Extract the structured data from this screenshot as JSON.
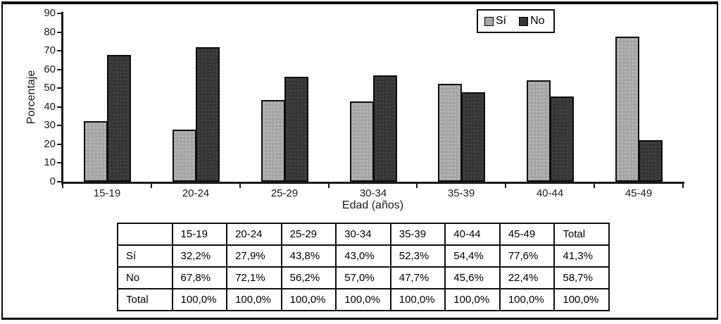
{
  "chart_data": {
    "type": "bar",
    "title": "",
    "categories": [
      "15-19",
      "20-24",
      "25-29",
      "30-34",
      "35-39",
      "40-44",
      "45-49"
    ],
    "series": [
      {
        "name": "Sí",
        "color": "#a6a6a6",
        "values": [
          32.2,
          27.9,
          43.8,
          43.0,
          52.3,
          54.4,
          77.6
        ]
      },
      {
        "name": "No",
        "color": "#363636",
        "values": [
          67.8,
          72.1,
          56.2,
          57.0,
          47.7,
          45.6,
          22.4
        ]
      }
    ],
    "xlabel": "Edad (años)",
    "ylabel": "Porcentaje",
    "ylim": [
      0,
      90
    ],
    "yticks": [
      0,
      10,
      20,
      30,
      40,
      50,
      60,
      70,
      80,
      90
    ],
    "grid": false,
    "legend_position": "top-right-inside",
    "axis_color": "#1a1a1a"
  },
  "table": {
    "columns": [
      "",
      "15-19",
      "20-24",
      "25-29",
      "30-34",
      "35-39",
      "40-44",
      "45-49",
      "Total"
    ],
    "rows": [
      {
        "label": "Sí",
        "values": [
          "32,2%",
          "27,9%",
          "43,8%",
          "43,0%",
          "52,3%",
          "54,4%",
          "77,6%",
          "41,3%"
        ]
      },
      {
        "label": "No",
        "values": [
          "67,8%",
          "72,1%",
          "56,2%",
          "57,0%",
          "47,7%",
          "45,6%",
          "22,4%",
          "58,7%"
        ]
      },
      {
        "label": "Total",
        "values": [
          "100,0%",
          "100,0%",
          "100,0%",
          "100,0%",
          "100,0%",
          "100,0%",
          "100,0%",
          "100,0%"
        ]
      }
    ]
  }
}
